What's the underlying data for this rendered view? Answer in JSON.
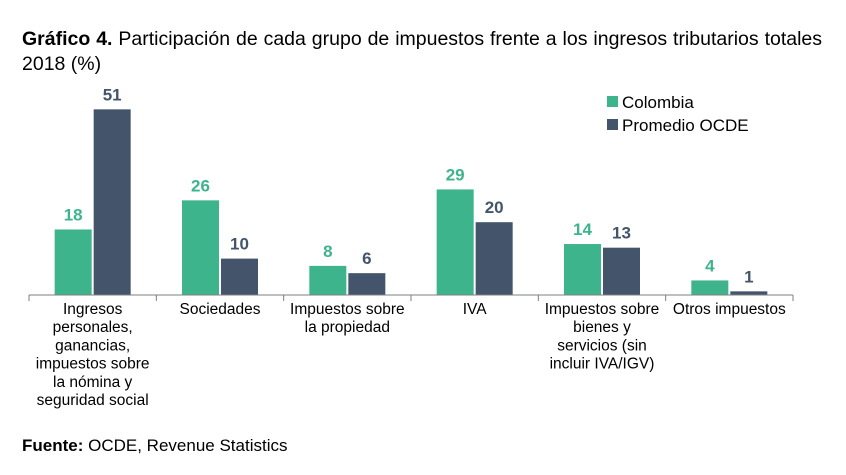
{
  "title": {
    "prefix": "Gráfico 4.",
    "text": "Participación de cada grupo de impuestos frente a los ingresos tributarios totales 2018 (%)"
  },
  "source": {
    "label": "Fuente:",
    "text": "OCDE, Revenue Statistics"
  },
  "chart_data": {
    "type": "bar",
    "categories": [
      "Ingresos personales, ganancias, impuestos sobre la nómina y seguridad social",
      "Sociedades",
      "Impuestos sobre la propiedad",
      "IVA",
      "Impuestos sobre bienes y servicios (sin incluir IVA/IGV)",
      "Otros impuestos"
    ],
    "category_label_lines": [
      [
        "Ingresos",
        "personales,",
        "ganancias,",
        "impuestos sobre",
        "la nómina y",
        "seguridad social"
      ],
      [
        "Sociedades"
      ],
      [
        "Impuestos sobre",
        "la propiedad"
      ],
      [
        "IVA"
      ],
      [
        "Impuestos sobre",
        "bienes y",
        "servicios (sin",
        "incluir IVA/IGV)"
      ],
      [
        "Otros impuestos"
      ]
    ],
    "series": [
      {
        "name": "Colombia",
        "color": "#3eb48c",
        "values": [
          18,
          26,
          8,
          29,
          14,
          4
        ]
      },
      {
        "name": "Promedio OCDE",
        "color": "#44546a",
        "values": [
          51,
          10,
          6,
          20,
          13,
          1
        ]
      }
    ],
    "ylim": [
      0,
      51
    ],
    "grid": false,
    "legend": "top-right",
    "data_labels": true
  }
}
